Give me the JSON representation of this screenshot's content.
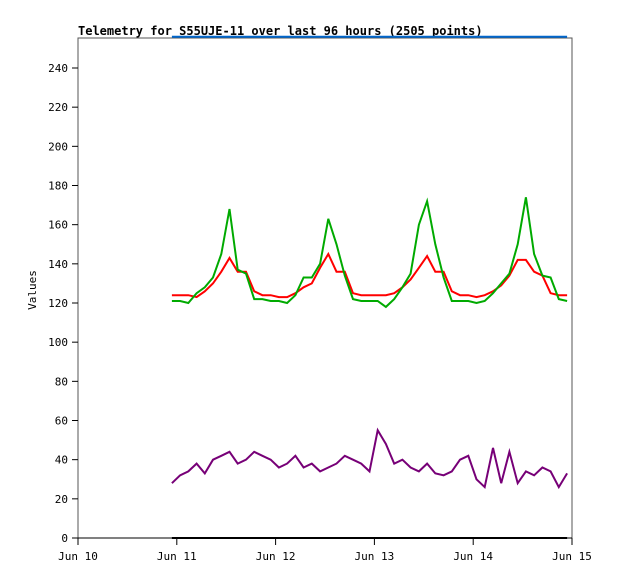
{
  "chart_data": {
    "type": "line",
    "title": "Telemetry for S55UJE-11 over last 96 hours (2505 points)",
    "xlabel": "",
    "ylabel": "Values",
    "ylim": [
      0,
      255
    ],
    "yticks": [
      0,
      20,
      40,
      60,
      80,
      100,
      120,
      140,
      160,
      180,
      200,
      220,
      240
    ],
    "xlim_days": [
      0,
      5
    ],
    "xtick_labels": [
      "Jun 10",
      "Jun 11",
      "Jun 12",
      "Jun 13",
      "Jun 14",
      "Jun 15"
    ],
    "x_start_hours_after_jun10": 22.8,
    "x_step_hours": 2,
    "grid": false,
    "series": [
      {
        "name": "blue",
        "color": "#0066cc",
        "values": [
          256,
          256,
          256,
          256,
          256,
          256,
          256,
          256,
          256,
          256,
          256,
          256,
          256,
          256,
          256,
          256,
          256,
          256,
          256,
          256,
          256,
          256,
          256,
          256,
          256,
          256,
          256,
          256,
          256,
          256,
          256,
          256,
          256,
          256,
          256,
          256,
          256,
          256,
          256,
          256,
          256,
          256,
          256,
          256,
          256,
          256,
          256,
          256,
          256
        ]
      },
      {
        "name": "black",
        "color": "#000000",
        "values": [
          0,
          0,
          0,
          0,
          0,
          0,
          0,
          0,
          0,
          0,
          0,
          0,
          0,
          0,
          0,
          0,
          0,
          0,
          0,
          0,
          0,
          0,
          0,
          0,
          0,
          0,
          0,
          0,
          0,
          0,
          0,
          0,
          0,
          0,
          0,
          0,
          0,
          0,
          0,
          0,
          0,
          0,
          0,
          0,
          0,
          0,
          0,
          0,
          0
        ]
      },
      {
        "name": "red",
        "color": "#ff0000",
        "values": [
          124,
          124,
          124,
          123,
          126,
          130,
          136,
          143,
          136,
          136,
          126,
          124,
          124,
          123,
          123,
          125,
          128,
          130,
          138,
          145,
          136,
          136,
          125,
          124,
          124,
          124,
          124,
          125,
          128,
          132,
          138,
          144,
          136,
          136,
          126,
          124,
          124,
          123,
          124,
          126,
          129,
          134,
          142,
          142,
          136,
          134,
          125,
          124,
          124
        ]
      },
      {
        "name": "green",
        "color": "#00aa00",
        "values": [
          121,
          121,
          120,
          125,
          128,
          133,
          145,
          168,
          137,
          135,
          122,
          122,
          121,
          121,
          120,
          124,
          133,
          133,
          140,
          163,
          150,
          134,
          122,
          121,
          121,
          121,
          118,
          122,
          128,
          135,
          160,
          172,
          150,
          133,
          121,
          121,
          121,
          120,
          121,
          125,
          130,
          135,
          150,
          174,
          145,
          134,
          133,
          122,
          121
        ]
      },
      {
        "name": "purple",
        "color": "#770077",
        "values": [
          28,
          32,
          34,
          38,
          33,
          40,
          42,
          44,
          38,
          40,
          44,
          42,
          40,
          36,
          38,
          42,
          36,
          38,
          34,
          36,
          38,
          42,
          40,
          38,
          34,
          55,
          48,
          38,
          40,
          36,
          34,
          38,
          33,
          32,
          34,
          40,
          42,
          30,
          26,
          46,
          28,
          44,
          28,
          34,
          32,
          36,
          34,
          26,
          33
        ]
      }
    ]
  }
}
